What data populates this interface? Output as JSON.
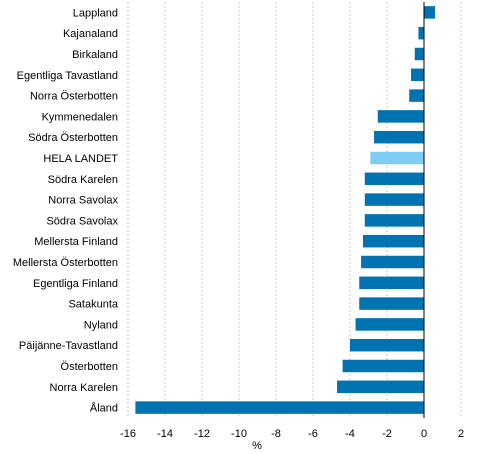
{
  "chart_data": {
    "type": "bar",
    "orientation": "horizontal",
    "title": "",
    "xlabel": "%",
    "ylabel": "",
    "xlim": [
      -16,
      2
    ],
    "xticks": [
      -16,
      -14,
      -12,
      -10,
      -8,
      -6,
      -4,
      -2,
      0,
      2
    ],
    "grid": "vertical-dashed",
    "legend": "none",
    "categories": [
      "Lappland",
      "Kajanaland",
      "Birkaland",
      "Egentliga Tavastland",
      "Norra Österbotten",
      "Kymmenedalen",
      "Södra Österbotten",
      "HELA LANDET",
      "Södra Karelen",
      "Norra Savolax",
      "Södra Savolax",
      "Mellersta Finland",
      "Mellersta Österbotten",
      "Egentliga Finland",
      "Satakunta",
      "Nyland",
      "Päijänne-Tavastland",
      "Österbotten",
      "Norra Karelen",
      "Åland"
    ],
    "values": [
      0.6,
      -0.3,
      -0.5,
      -0.7,
      -0.8,
      -2.5,
      -2.7,
      -2.9,
      -3.2,
      -3.2,
      -3.2,
      -3.3,
      -3.4,
      -3.5,
      -3.5,
      -3.7,
      -4.0,
      -4.4,
      -4.7,
      -15.6
    ],
    "colors": {
      "default": "#0073b0",
      "highlight": "#7dcdf6",
      "grid": "#c8c8c8",
      "axis": "#000000"
    },
    "highlight_category": "HELA LANDET"
  }
}
